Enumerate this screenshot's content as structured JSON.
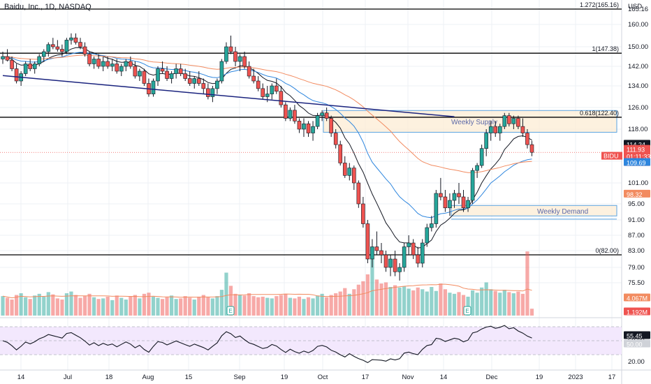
{
  "header": {
    "title": "Baidu, Inc., 1D, NASDAQ",
    "currency": "USD"
  },
  "chart_data": {
    "type": "candlestick",
    "price_axis": {
      "ticks": [
        "165.16",
        "160.00",
        "150.00",
        "142.00",
        "134.00",
        "126.00",
        "118.00",
        "109.69",
        "101.00",
        "95.00",
        "91.00",
        "87.00",
        "83.00",
        "79.00",
        "75.50"
      ],
      "ylim": [
        72,
        168
      ]
    },
    "rsi_axis": {
      "ticks": [
        "50.00",
        "20.00"
      ],
      "ylim": [
        10,
        80
      ]
    },
    "x_axis": {
      "tick_labels": [
        "14",
        "Jul",
        "18",
        "Aug",
        "15",
        "Sep",
        "19",
        "Oct",
        "17",
        "Nov",
        "14",
        "Dec",
        "19",
        "2023",
        "17"
      ]
    },
    "fib_levels": [
      {
        "label": "1.272(165.16)",
        "price": 165.16
      },
      {
        "label": "1(147.38)",
        "price": 147.38
      },
      {
        "label": "0.618(122.40)",
        "price": 122.4
      },
      {
        "label": "0(82.00)",
        "price": 82.0
      }
    ],
    "zones": [
      {
        "label": "Weekly Supply",
        "low": 117.2,
        "high": 124.9
      },
      {
        "label": "Weekly Demand",
        "low": 92.0,
        "high": 94.6
      }
    ],
    "trendline": {
      "from": [
        0,
        138.2
      ],
      "to": [
        99,
        122.6
      ]
    },
    "candles": [
      [
        145,
        148,
        143,
        146
      ],
      [
        146,
        149,
        144,
        144.5
      ],
      [
        144.5,
        146,
        140,
        141
      ],
      [
        141,
        143,
        135,
        136
      ],
      [
        136,
        140,
        134,
        139
      ],
      [
        139,
        144,
        138,
        143
      ],
      [
        143,
        145,
        140,
        141
      ],
      [
        141,
        144,
        139,
        143
      ],
      [
        143,
        147,
        142,
        146
      ],
      [
        146,
        149,
        144,
        148
      ],
      [
        148,
        152,
        146,
        151
      ],
      [
        151,
        154,
        149,
        150
      ],
      [
        150,
        153,
        148,
        149
      ],
      [
        149,
        151,
        146,
        148
      ],
      [
        148,
        154,
        147,
        153
      ],
      [
        153,
        156,
        151,
        154
      ],
      [
        154,
        156,
        151,
        152
      ],
      [
        152,
        154,
        149,
        150
      ],
      [
        150,
        152,
        146,
        147
      ],
      [
        147,
        148,
        142,
        143
      ],
      [
        143,
        146,
        141,
        145
      ],
      [
        145,
        147,
        141,
        142
      ],
      [
        142,
        146,
        140,
        144
      ],
      [
        144,
        146,
        141,
        142
      ],
      [
        142,
        145,
        140,
        143
      ],
      [
        143,
        145,
        139,
        140
      ],
      [
        140,
        143,
        138,
        142
      ],
      [
        142,
        145,
        140,
        144
      ],
      [
        144,
        146,
        141,
        142
      ],
      [
        142,
        144,
        137,
        138
      ],
      [
        138,
        141,
        136,
        140
      ],
      [
        140,
        141,
        134,
        135
      ],
      [
        135,
        137,
        130,
        131
      ],
      [
        131,
        137,
        130,
        136
      ],
      [
        136,
        142,
        134,
        141
      ],
      [
        141,
        144,
        139,
        140
      ],
      [
        140,
        142,
        136,
        137
      ],
      [
        137,
        140,
        135,
        139
      ],
      [
        139,
        143,
        137,
        141
      ],
      [
        141,
        143,
        138,
        139
      ],
      [
        139,
        141,
        136,
        137
      ],
      [
        137,
        140,
        134,
        135
      ],
      [
        135,
        138,
        133,
        137
      ],
      [
        137,
        140,
        134,
        135
      ],
      [
        135,
        137,
        131,
        133
      ],
      [
        133,
        135,
        129,
        130
      ],
      [
        130,
        134,
        128,
        133
      ],
      [
        133,
        137,
        131,
        136
      ],
      [
        136,
        145,
        135,
        144
      ],
      [
        144,
        152,
        143,
        150
      ],
      [
        150,
        155,
        147,
        148
      ],
      [
        148,
        150,
        142,
        144
      ],
      [
        144,
        147,
        140,
        146
      ],
      [
        146,
        148,
        141,
        142
      ],
      [
        142,
        144,
        137,
        138
      ],
      [
        138,
        141,
        135,
        136
      ],
      [
        136,
        138,
        132,
        133
      ],
      [
        133,
        135,
        129,
        130
      ],
      [
        130,
        134,
        128,
        131
      ],
      [
        131,
        135,
        129,
        134
      ],
      [
        134,
        137,
        131,
        132
      ],
      [
        132,
        134,
        126,
        127
      ],
      [
        127,
        128,
        121,
        122
      ],
      [
        122,
        126,
        121,
        125
      ],
      [
        125,
        127,
        120,
        121
      ],
      [
        121,
        122,
        117,
        118
      ],
      [
        118,
        122,
        116,
        120
      ],
      [
        120,
        121,
        116,
        117
      ],
      [
        117,
        121,
        115,
        119
      ],
      [
        119,
        124,
        118,
        123
      ],
      [
        123,
        125,
        121,
        124
      ],
      [
        124,
        126,
        121,
        122
      ],
      [
        122,
        123,
        116,
        117
      ],
      [
        117,
        118,
        113,
        114
      ],
      [
        114,
        115,
        108,
        109
      ],
      [
        109,
        111,
        103,
        104
      ],
      [
        104,
        109,
        102,
        107
      ],
      [
        107,
        108,
        99,
        101
      ],
      [
        101,
        102,
        94,
        95
      ],
      [
        95,
        97,
        89,
        90
      ],
      [
        90,
        91,
        80,
        81
      ],
      [
        81,
        86,
        79,
        84
      ],
      [
        84,
        88,
        82,
        83
      ],
      [
        83,
        85,
        80,
        82
      ],
      [
        82,
        83,
        78,
        79
      ],
      [
        79,
        82,
        77,
        81
      ],
      [
        81,
        83,
        77,
        78
      ],
      [
        78,
        80,
        76,
        79
      ],
      [
        79,
        85,
        78,
        84
      ],
      [
        84,
        87,
        82,
        85
      ],
      [
        85,
        86,
        81,
        82
      ],
      [
        82,
        84,
        79,
        80
      ],
      [
        80,
        86,
        79,
        85
      ],
      [
        85,
        90,
        84,
        89
      ],
      [
        89,
        92,
        88,
        90
      ],
      [
        90,
        99,
        89,
        98
      ],
      [
        98,
        103,
        96,
        97
      ],
      [
        97,
        99,
        93,
        94
      ],
      [
        94,
        98,
        92,
        96
      ],
      [
        96,
        99,
        94,
        98
      ],
      [
        98,
        101,
        95,
        97
      ],
      [
        97,
        99,
        93,
        94
      ],
      [
        94,
        97,
        93,
        96
      ],
      [
        96,
        107,
        95,
        106
      ],
      [
        106,
        109,
        103,
        108
      ],
      [
        108,
        114,
        107,
        113
      ],
      [
        113,
        118,
        111,
        117
      ],
      [
        117,
        121,
        115,
        119
      ],
      [
        119,
        121,
        116,
        117
      ],
      [
        117,
        120,
        115,
        119
      ],
      [
        119,
        124,
        118,
        123
      ],
      [
        123,
        124,
        119,
        120
      ],
      [
        120,
        123,
        118,
        122
      ],
      [
        122,
        123,
        118,
        119
      ],
      [
        119,
        122,
        116,
        117
      ],
      [
        117,
        118,
        113,
        114
      ],
      [
        114,
        115,
        111,
        112
      ]
    ],
    "ma_short_label": "114.24",
    "ma_mid_label": "109.69",
    "ma_long_label": "98.32",
    "last_price_label": "111.93",
    "countdown": "01:11:33",
    "symbol": "BIDU",
    "volume_ma_label": "4.067M",
    "volume_label": "1.192M",
    "rsi_label": "55.45",
    "rsi_mid_label": "50.00",
    "earnings_marks": [
      "E",
      "E"
    ],
    "volumes": [
      3.4,
      3.1,
      2.8,
      3.6,
      3.9,
      3.2,
      2.9,
      3.5,
      3.8,
      3.3,
      4.1,
      3.7,
      3.0,
      2.8,
      3.9,
      4.2,
      3.6,
      3.1,
      3.4,
      3.8,
      3.2,
      2.9,
      3.0,
      3.3,
      2.7,
      3.5,
      3.1,
      2.8,
      3.4,
      3.6,
      3.0,
      3.8,
      4.0,
      3.3,
      3.1,
      2.9,
      3.2,
      3.5,
      2.9,
      3.0,
      3.4,
      3.1,
      2.8,
      3.3,
      3.6,
      3.2,
      3.0,
      3.4,
      4.5,
      7.5,
      5.2,
      3.8,
      3.6,
      3.5,
      3.9,
      3.4,
      3.2,
      3.3,
      3.1,
      3.0,
      3.4,
      3.6,
      3.8,
      3.1,
      3.0,
      3.3,
      2.9,
      3.2,
      3.0,
      3.5,
      3.8,
      3.2,
      3.6,
      3.9,
      4.2,
      4.8,
      3.8,
      4.6,
      5.4,
      6.0,
      7.2,
      10.5,
      6.3,
      5.6,
      5.8,
      5.0,
      5.3,
      4.9,
      5.1,
      4.7,
      4.4,
      4.9,
      4.6,
      4.2,
      5.0,
      4.3,
      5.6,
      4.6,
      4.0,
      3.8,
      4.1,
      3.6,
      3.3,
      4.4,
      4.0,
      4.9,
      5.8,
      4.6,
      4.3,
      4.0,
      4.5,
      4.1,
      3.9,
      4.2,
      3.8,
      11.2,
      1.2
    ]
  }
}
